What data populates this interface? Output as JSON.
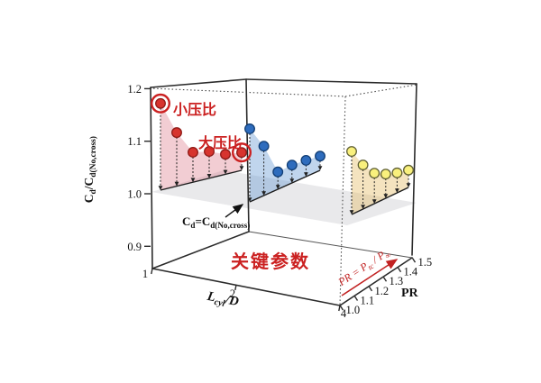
{
  "chart_data": {
    "type": "scatter3d-stem",
    "z_axis": {
      "label_parts": [
        {
          "t": "C"
        },
        {
          "t": "d",
          "sub": true
        },
        {
          "t": "/C"
        },
        {
          "t": "d(No,cross)",
          "sub": true
        }
      ],
      "ticks": [
        "0.9",
        "1.0",
        "1.1",
        "1.2"
      ],
      "range": [
        0.857,
        1.2
      ]
    },
    "x_axis": {
      "label_parts": [
        {
          "t": "L",
          "i": true
        },
        {
          "t": "cyl",
          "sub": true,
          "i": true
        },
        {
          "t": "/D",
          "i": true
        }
      ],
      "ticks": [
        "1",
        "2",
        "4"
      ]
    },
    "pr_axis": {
      "label": "PR",
      "ticks": [
        "1.0",
        "1.1",
        "1.2",
        "1.3",
        "1.4",
        "1.5"
      ]
    },
    "reference_plane": {
      "value": 1.0,
      "label_parts": [
        {
          "t": "C"
        },
        {
          "t": "d",
          "sub": true
        },
        {
          "t": "=C"
        },
        {
          "t": "d(No,cross)",
          "sub": true
        }
      ]
    },
    "pr_values": [
      1.0,
      1.1,
      1.2,
      1.3,
      1.4,
      1.5
    ],
    "series": [
      {
        "name": "Lcyl/D = 1",
        "marker_color": "#d7342e",
        "edge_color": "#8e1a16",
        "wall_fill": "rgba(219,112,130,0.35)",
        "values": [
          1.165,
          1.102,
          1.057,
          1.051,
          1.038,
          1.034
        ]
      },
      {
        "name": "Lcyl/D = 2",
        "marker_color": "#2e6cbd",
        "edge_color": "#123e75",
        "wall_fill": "rgba(105,155,212,0.42)",
        "values": [
          1.139,
          1.094,
          1.033,
          1.034,
          1.031,
          1.027
        ]
      },
      {
        "name": "Lcyl/D = 4",
        "marker_color": "#f9f07d",
        "edge_color": "#5f5f33",
        "wall_fill": "rgba(228,186,96,0.40)",
        "values": [
          1.12,
          1.084,
          1.058,
          1.046,
          1.038,
          1.033
        ]
      }
    ],
    "circled_points": [
      {
        "series": 0,
        "point": 0
      },
      {
        "series": 0,
        "point": 5
      }
    ],
    "annotations": {
      "small_pr": "小压比",
      "large_pr": "大压比",
      "key_params": "关键参数",
      "pr_formula_parts": [
        {
          "t": "PR = P",
          "i": true
        },
        {
          "t": "tc",
          "sub": true,
          "i": true
        },
        {
          "t": " / P",
          "i": true
        },
        {
          "t": "∞",
          "sub": true,
          "i": true
        }
      ]
    },
    "colors": {
      "annotation_red": "#cb2121",
      "box_line": "#2b2b2b",
      "stem": "#222222",
      "plane_gray": "#d7d7db"
    }
  }
}
